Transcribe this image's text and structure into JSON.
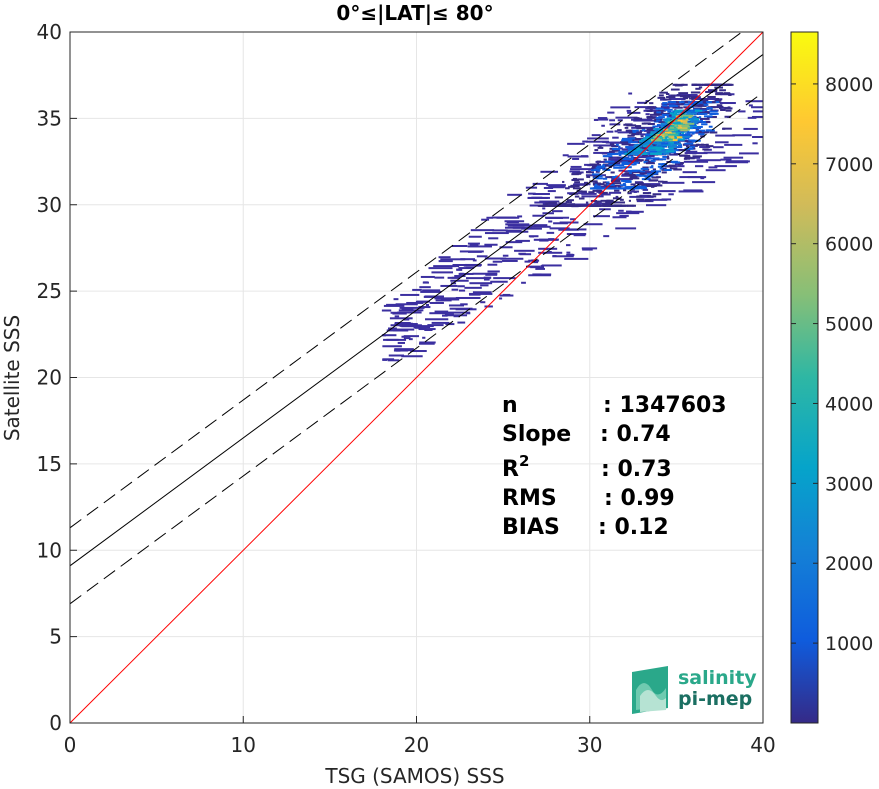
{
  "chart_data": {
    "type": "scatter",
    "title": "0°≤|LAT|≤ 80°",
    "xlabel": "TSG (SAMOS) SSS",
    "ylabel": "Satellite SSS",
    "xlim": [
      0,
      40
    ],
    "ylim": [
      0,
      40
    ],
    "xticks": [
      "0",
      "10",
      "20",
      "30",
      "40"
    ],
    "yticks": [
      "0",
      "5",
      "10",
      "15",
      "20",
      "25",
      "30",
      "35",
      "40"
    ],
    "grid": true,
    "colorbar": {
      "range": [
        0,
        8650
      ],
      "ticks": [
        "1000",
        "2000",
        "3000",
        "4000",
        "5000",
        "6000",
        "7000",
        "8000"
      ]
    },
    "lines": {
      "identity": {
        "slope": 1,
        "intercept": 0,
        "color": "#ff0000"
      },
      "fit": {
        "slope": 0.74,
        "intercept": 9.1,
        "color": "#000000"
      },
      "fit_plus": {
        "slope": 0.74,
        "intercept": 11.3,
        "style": "dashed"
      },
      "fit_minus": {
        "slope": 0.74,
        "intercept": 6.9,
        "style": "dashed"
      }
    },
    "density_regions": [
      {
        "x": [
          27,
          38
        ],
        "y": [
          30,
          37
        ],
        "level": 600
      },
      {
        "x": [
          30,
          37
        ],
        "y": [
          31,
          36
        ],
        "level": 1200
      },
      {
        "x": [
          32,
          36
        ],
        "y": [
          33,
          35.5
        ],
        "level": 3000
      },
      {
        "x": [
          33.5,
          35.5
        ],
        "y": [
          33.8,
          35.2
        ],
        "level": 6000
      }
    ],
    "stats": [
      {
        "label": "n",
        "sup": "",
        "value": ": 1347603"
      },
      {
        "label": "Slope",
        "sup": "",
        "value": ": 0.74"
      },
      {
        "label": "R",
        "sup": "2",
        "value": ": 0.73"
      },
      {
        "label": "RMS",
        "sup": "",
        "value": ": 0.99"
      },
      {
        "label": "BIAS",
        "sup": "",
        "value": ": 0.12"
      }
    ]
  },
  "logo": {
    "line1": "salinity",
    "line2": "pi-mep"
  }
}
